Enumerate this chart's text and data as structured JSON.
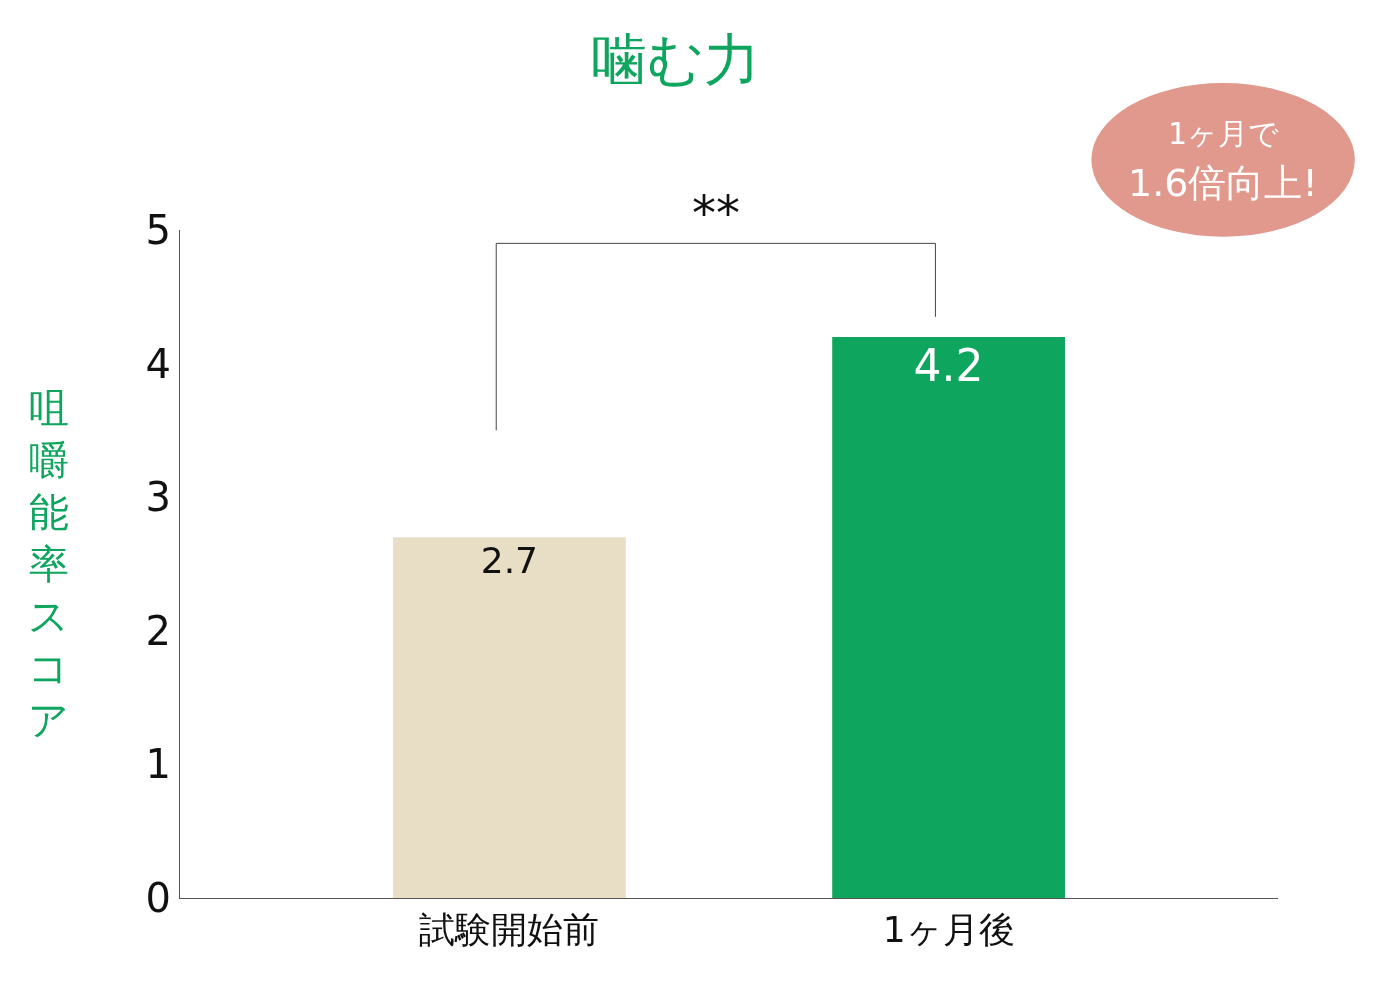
{
  "chart_data": {
    "type": "bar",
    "title": "噛む力",
    "ylabel": "咀嚼能率スコア",
    "categories": [
      "試験開始前",
      "1ヶ月後"
    ],
    "values": [
      2.7,
      4.2
    ],
    "colors": [
      "#e8dec6",
      "#0ea55e"
    ],
    "ylim": [
      0,
      5
    ],
    "yticks": [
      0,
      1,
      2,
      3,
      4,
      5
    ],
    "data_labels": true,
    "annotations": [
      "**",
      "1ヶ月で",
      "1.6倍向上!"
    ]
  }
}
